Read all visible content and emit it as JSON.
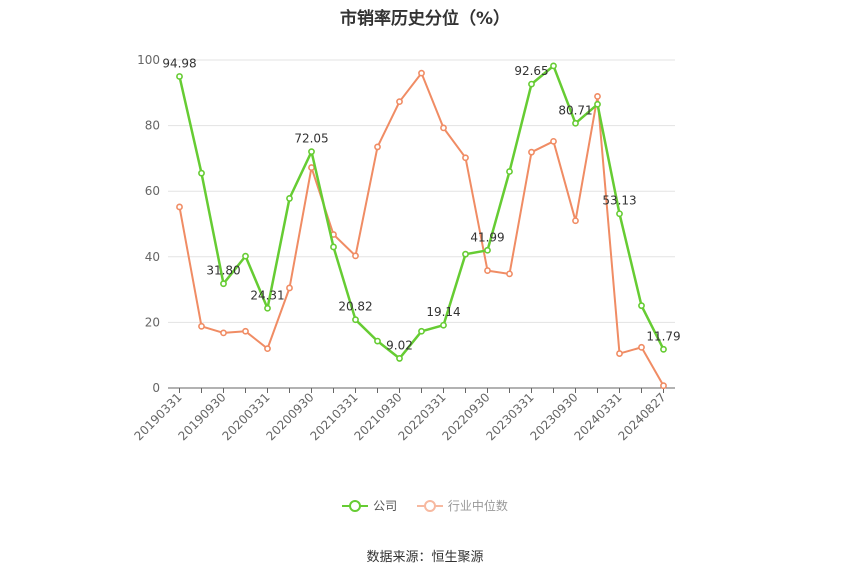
{
  "chart_data": {
    "type": "line",
    "title": "市销率历史分位（%）",
    "ylim": [
      0,
      100
    ],
    "yticks": [
      0,
      20,
      40,
      60,
      80,
      100
    ],
    "xtick_labels": [
      "20190331",
      "20190930",
      "20200331",
      "20200930",
      "20210331",
      "20210930",
      "20220331",
      "20220930",
      "20230331",
      "20230930",
      "20240331",
      "20240827"
    ],
    "grid": true,
    "legend_position": "bottom",
    "series": [
      {
        "name": "公司",
        "color": "#66cc33",
        "values": [
          94.98,
          65.5,
          31.8,
          40.2,
          24.31,
          57.8,
          72.05,
          43.0,
          20.82,
          14.3,
          9.02,
          17.3,
          19.14,
          40.8,
          41.99,
          66.0,
          92.65,
          98.2,
          80.71,
          86.5,
          53.13,
          25.1,
          11.79
        ],
        "labels": [
          "94.98",
          "",
          "31.80",
          "",
          "24.31",
          "",
          "72.05",
          "",
          "20.82",
          "",
          "9.02",
          "",
          "19.14",
          "",
          "41.99",
          "",
          "92.65",
          "",
          "80.71",
          "",
          "53.13",
          "",
          "11.79"
        ]
      },
      {
        "name": "行业中位数",
        "color": "#f08c64",
        "values": [
          55.2,
          18.8,
          16.8,
          17.3,
          12.0,
          30.5,
          67.2,
          46.8,
          40.3,
          73.5,
          87.3,
          96.0,
          79.3,
          70.2,
          35.8,
          34.8,
          71.9,
          75.2,
          51.0,
          88.9,
          10.5,
          12.4,
          0.7
        ]
      }
    ]
  },
  "legend": {
    "company_label": "公司",
    "industry_label": "行业中位数"
  },
  "source": "数据来源：恒生聚源"
}
